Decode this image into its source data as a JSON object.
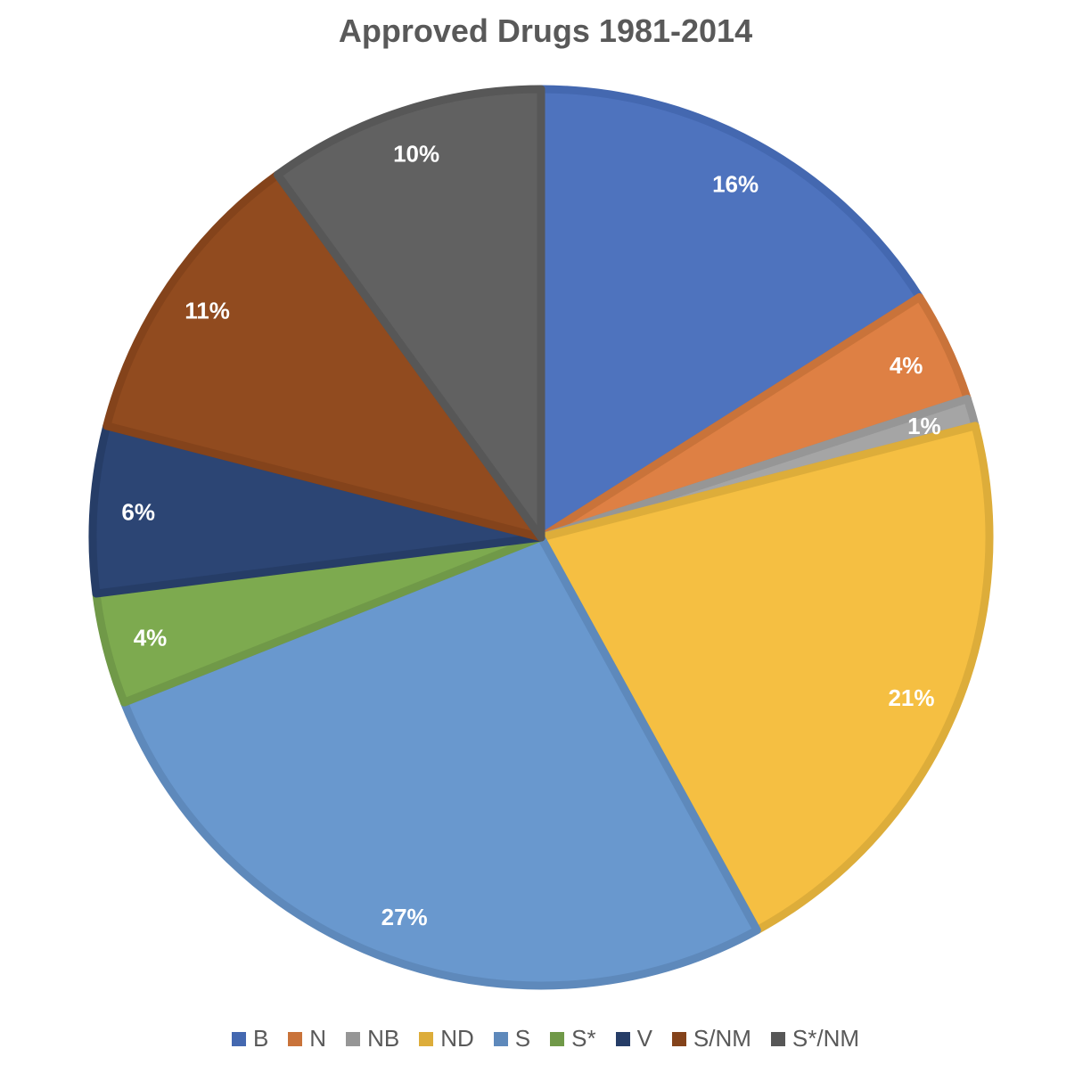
{
  "chart_data": {
    "type": "pie",
    "title": "Approved Drugs 1981-2014",
    "start_angle": "top, clockwise",
    "legend_position": "bottom",
    "slices": [
      {
        "name": "B",
        "value": 16,
        "label": "16%",
        "color": "#4E73BE",
        "border": "#4468B0"
      },
      {
        "name": "N",
        "value": 4,
        "label": "4%",
        "color": "#DE8044",
        "border": "#C9733A"
      },
      {
        "name": "NB",
        "value": 1,
        "label": "1%",
        "color": "#A5A5A5",
        "border": "#969696"
      },
      {
        "name": "ND",
        "value": 21,
        "label": "21%",
        "color": "#F5BF42",
        "border": "#DDAD3A"
      },
      {
        "name": "S",
        "value": 27,
        "label": "27%",
        "color": "#6998CE",
        "border": "#5E89BB"
      },
      {
        "name": "S*",
        "value": 4,
        "label": "4%",
        "color": "#7DAA4F",
        "border": "#709948"
      },
      {
        "name": "V",
        "value": 6,
        "label": "6%",
        "color": "#2C4574",
        "border": "#263D67"
      },
      {
        "name": "S/NM",
        "value": 11,
        "label": "11%",
        "color": "#914B1F",
        "border": "#84431B"
      },
      {
        "name": "S*/NM",
        "value": 10,
        "label": "10%",
        "color": "#616161",
        "border": "#575757"
      }
    ]
  }
}
